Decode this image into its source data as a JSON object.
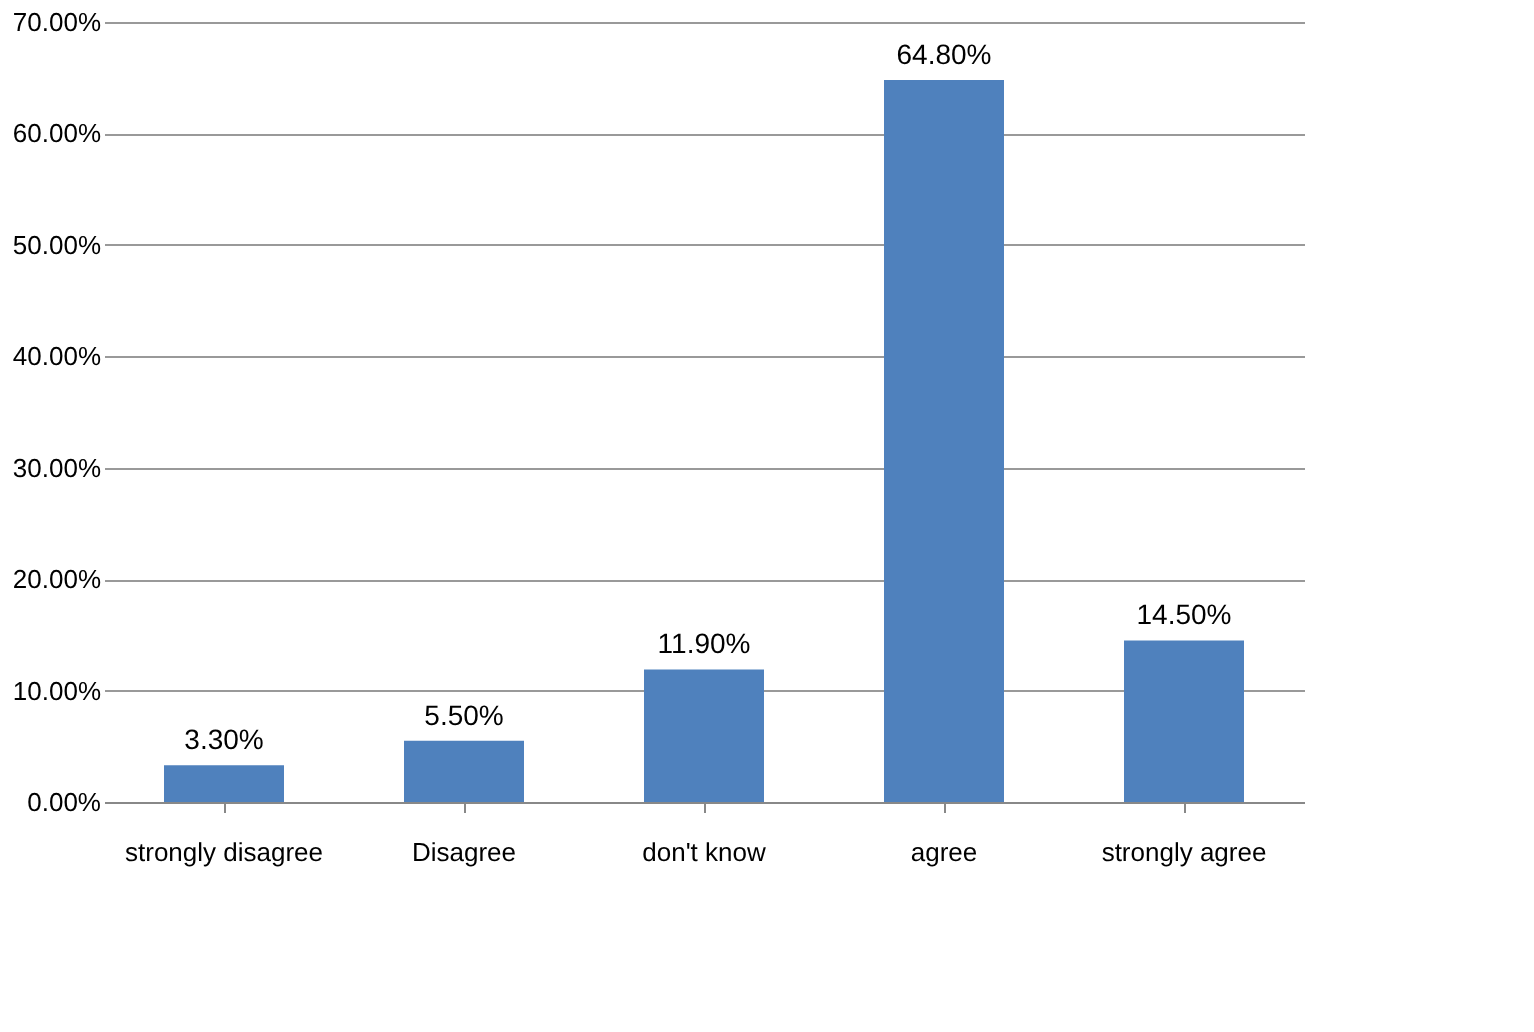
{
  "chart_data": {
    "type": "bar",
    "categories": [
      "strongly disagree",
      "Disagree",
      "don't know",
      "agree",
      "strongly agree"
    ],
    "values": [
      3.3,
      5.5,
      11.9,
      64.8,
      14.5
    ],
    "value_labels": [
      "3.30%",
      "5.50%",
      "11.90%",
      "64.80%",
      "14.50%"
    ],
    "color": "#4f81bd",
    "ylim": [
      0,
      70
    ],
    "yticks": [
      {
        "value": 0,
        "label": "0.00%"
      },
      {
        "value": 10,
        "label": "10.00%"
      },
      {
        "value": 20,
        "label": "20.00%"
      },
      {
        "value": 30,
        "label": "30.00%"
      },
      {
        "value": 40,
        "label": "40.00%"
      },
      {
        "value": 50,
        "label": "50.00%"
      },
      {
        "value": 60,
        "label": "60.00%"
      },
      {
        "value": 70,
        "label": "70.00%"
      }
    ],
    "grid": "y"
  }
}
